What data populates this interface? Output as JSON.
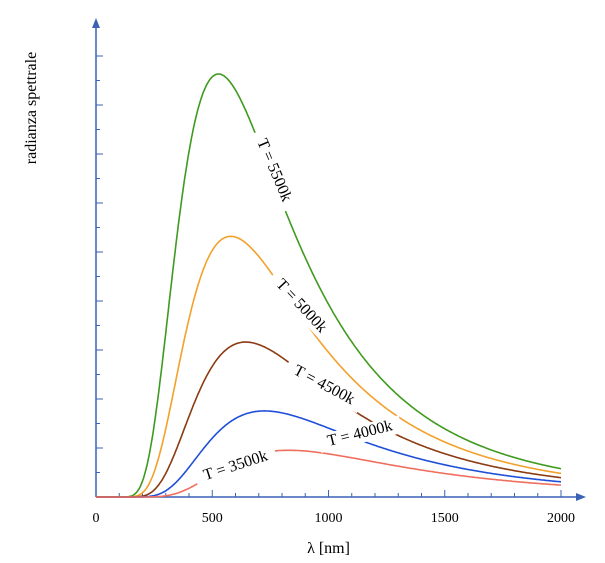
{
  "chart_data": {
    "type": "line",
    "title": "",
    "xlabel": "λ [nm]",
    "ylabel": "radianza spettrale",
    "xlim": [
      0,
      2000
    ],
    "ylim": [
      0,
      88
    ],
    "x_ticks": [
      "0",
      "500",
      "1000",
      "1500",
      "2000"
    ],
    "y_tick_labels_shown": false,
    "grid": false,
    "legend": "none (curves labelled inline)",
    "axis_color": "#3a62b5",
    "series": [
      {
        "name": "T = 5500k",
        "color": "#3f9a1e",
        "peak_x": 540,
        "peak_y": 86,
        "x_range": [
          0,
          2000
        ]
      },
      {
        "name": "T = 5000k",
        "color": "#f2a12b",
        "peak_x": 600,
        "peak_y": 53,
        "x_range": [
          0,
          2000
        ]
      },
      {
        "name": "T = 4500k",
        "color": "#8b3a12",
        "peak_x": 675,
        "peak_y": 31.5,
        "x_range": [
          0,
          2000
        ]
      },
      {
        "name": "T = 4000k",
        "color": "#1f4fd8",
        "peak_x": 740,
        "peak_y": 17.5,
        "x_range": [
          0,
          2000
        ]
      },
      {
        "name": "T = 3500k",
        "color": "#ee6f5e",
        "peak_x": 830,
        "peak_y": 9.5,
        "x_range": [
          0,
          2000
        ]
      }
    ]
  }
}
